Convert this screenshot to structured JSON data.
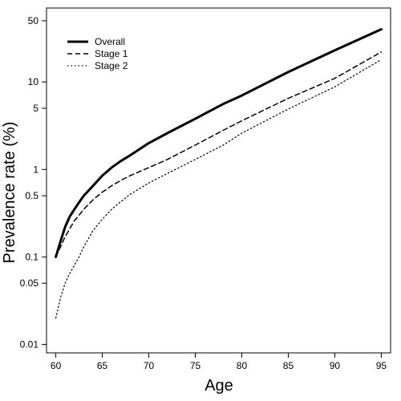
{
  "chart_data": {
    "type": "line",
    "title": "",
    "xlabel": "Age",
    "ylabel": "Prevalence rate (%)",
    "xlim": [
      59,
      96
    ],
    "ylim": [
      0.008,
      70
    ],
    "y_scale": "log",
    "grid": false,
    "legend_position": "top-left",
    "x_ticks": [
      60,
      65,
      70,
      75,
      80,
      85,
      90,
      95
    ],
    "x_tick_labels": [
      "60",
      "65",
      "70",
      "75",
      "80",
      "85",
      "90",
      "95"
    ],
    "y_ticks": [
      0.01,
      0.05,
      0.1,
      0.5,
      1,
      5,
      10,
      50
    ],
    "y_tick_labels": [
      "0.01",
      "0.05",
      "0.1",
      "0.5",
      "1",
      "5",
      "10",
      "50"
    ],
    "x": [
      60,
      60.5,
      61,
      61.5,
      62,
      62.5,
      63,
      64,
      65,
      66,
      67,
      68,
      70,
      72,
      75,
      78,
      80,
      85,
      90,
      95
    ],
    "series": [
      {
        "name": "Overall",
        "style": "solid",
        "color": "#000000",
        "values": [
          0.1,
          0.15,
          0.22,
          0.29,
          0.35,
          0.42,
          0.5,
          0.65,
          0.85,
          1.05,
          1.25,
          1.45,
          2.0,
          2.6,
          3.8,
          5.6,
          7.0,
          13.0,
          23.0,
          40.0
        ]
      },
      {
        "name": "Stage 1",
        "style": "dashed",
        "color": "#000000",
        "values": [
          0.1,
          0.13,
          0.17,
          0.21,
          0.26,
          0.3,
          0.35,
          0.45,
          0.55,
          0.65,
          0.75,
          0.85,
          1.05,
          1.3,
          1.9,
          2.8,
          3.6,
          6.5,
          11.0,
          22.0
        ]
      },
      {
        "name": "Stage 2",
        "style": "dotted",
        "color": "#000000",
        "values": [
          0.02,
          0.034,
          0.05,
          0.065,
          0.08,
          0.1,
          0.13,
          0.2,
          0.27,
          0.35,
          0.43,
          0.52,
          0.7,
          0.9,
          1.3,
          1.9,
          2.6,
          4.9,
          8.8,
          18.0
        ]
      }
    ]
  }
}
